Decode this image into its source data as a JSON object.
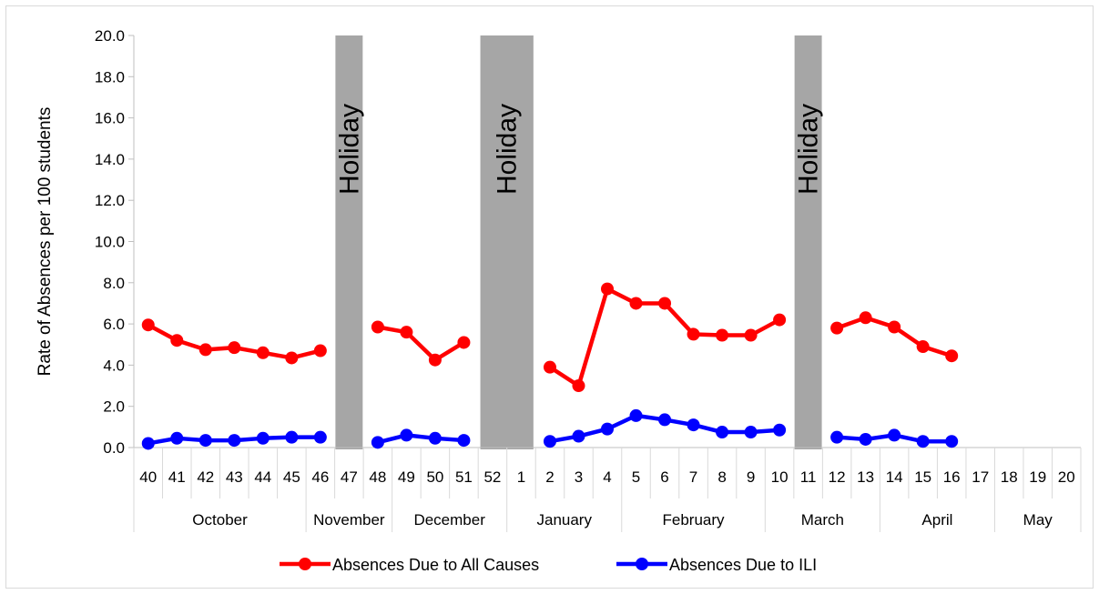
{
  "chart_data": {
    "type": "line",
    "ylabel": "Rate of Absences per 100 students",
    "ylim": [
      0,
      20
    ],
    "ytick_step": 2,
    "ytick_labels": [
      "0.0",
      "2.0",
      "4.0",
      "6.0",
      "8.0",
      "10.0",
      "12.0",
      "14.0",
      "16.0",
      "18.0",
      "20.0"
    ],
    "categories": [
      "40",
      "41",
      "42",
      "43",
      "44",
      "45",
      "46",
      "47",
      "48",
      "49",
      "50",
      "51",
      "52",
      "1",
      "2",
      "3",
      "4",
      "5",
      "6",
      "7",
      "8",
      "9",
      "10",
      "11",
      "12",
      "13",
      "14",
      "15",
      "16",
      "17",
      "18",
      "19",
      "20"
    ],
    "month_groups": [
      {
        "label": "October",
        "count": 6
      },
      {
        "label": "November",
        "count": 3
      },
      {
        "label": "December",
        "count": 4
      },
      {
        "label": "January",
        "count": 4
      },
      {
        "label": "February",
        "count": 5
      },
      {
        "label": "March",
        "count": 4
      },
      {
        "label": "April",
        "count": 4
      },
      {
        "label": "May",
        "count": 3
      }
    ],
    "holidays": [
      {
        "label": "Holiday",
        "week": "47"
      },
      {
        "label": "Holiday",
        "weeks": [
          "52",
          "1"
        ]
      },
      {
        "label": "Holiday",
        "week": "11"
      }
    ],
    "series": [
      {
        "name": "Absences Due to All Causes",
        "color": "#ff0000",
        "values": [
          5.95,
          5.2,
          4.75,
          4.85,
          4.6,
          4.35,
          4.7,
          null,
          5.85,
          5.6,
          4.25,
          5.1,
          null,
          null,
          3.9,
          3.0,
          7.7,
          7.0,
          7.0,
          5.5,
          5.45,
          5.45,
          6.2,
          null,
          5.8,
          6.3,
          5.85,
          4.9,
          4.45,
          null,
          null,
          null,
          null
        ]
      },
      {
        "name": "Absences Due to ILI",
        "color": "#0000ff",
        "values": [
          0.2,
          0.45,
          0.35,
          0.35,
          0.45,
          0.5,
          0.5,
          null,
          0.25,
          0.6,
          0.45,
          0.35,
          null,
          null,
          0.3,
          0.55,
          0.9,
          1.55,
          1.35,
          1.1,
          0.75,
          0.75,
          0.85,
          null,
          0.5,
          0.4,
          0.6,
          0.3,
          0.3,
          null,
          null,
          null,
          null
        ]
      }
    ],
    "holiday_color": "#a6a6a6",
    "grid": false,
    "legend_position": "bottom"
  }
}
